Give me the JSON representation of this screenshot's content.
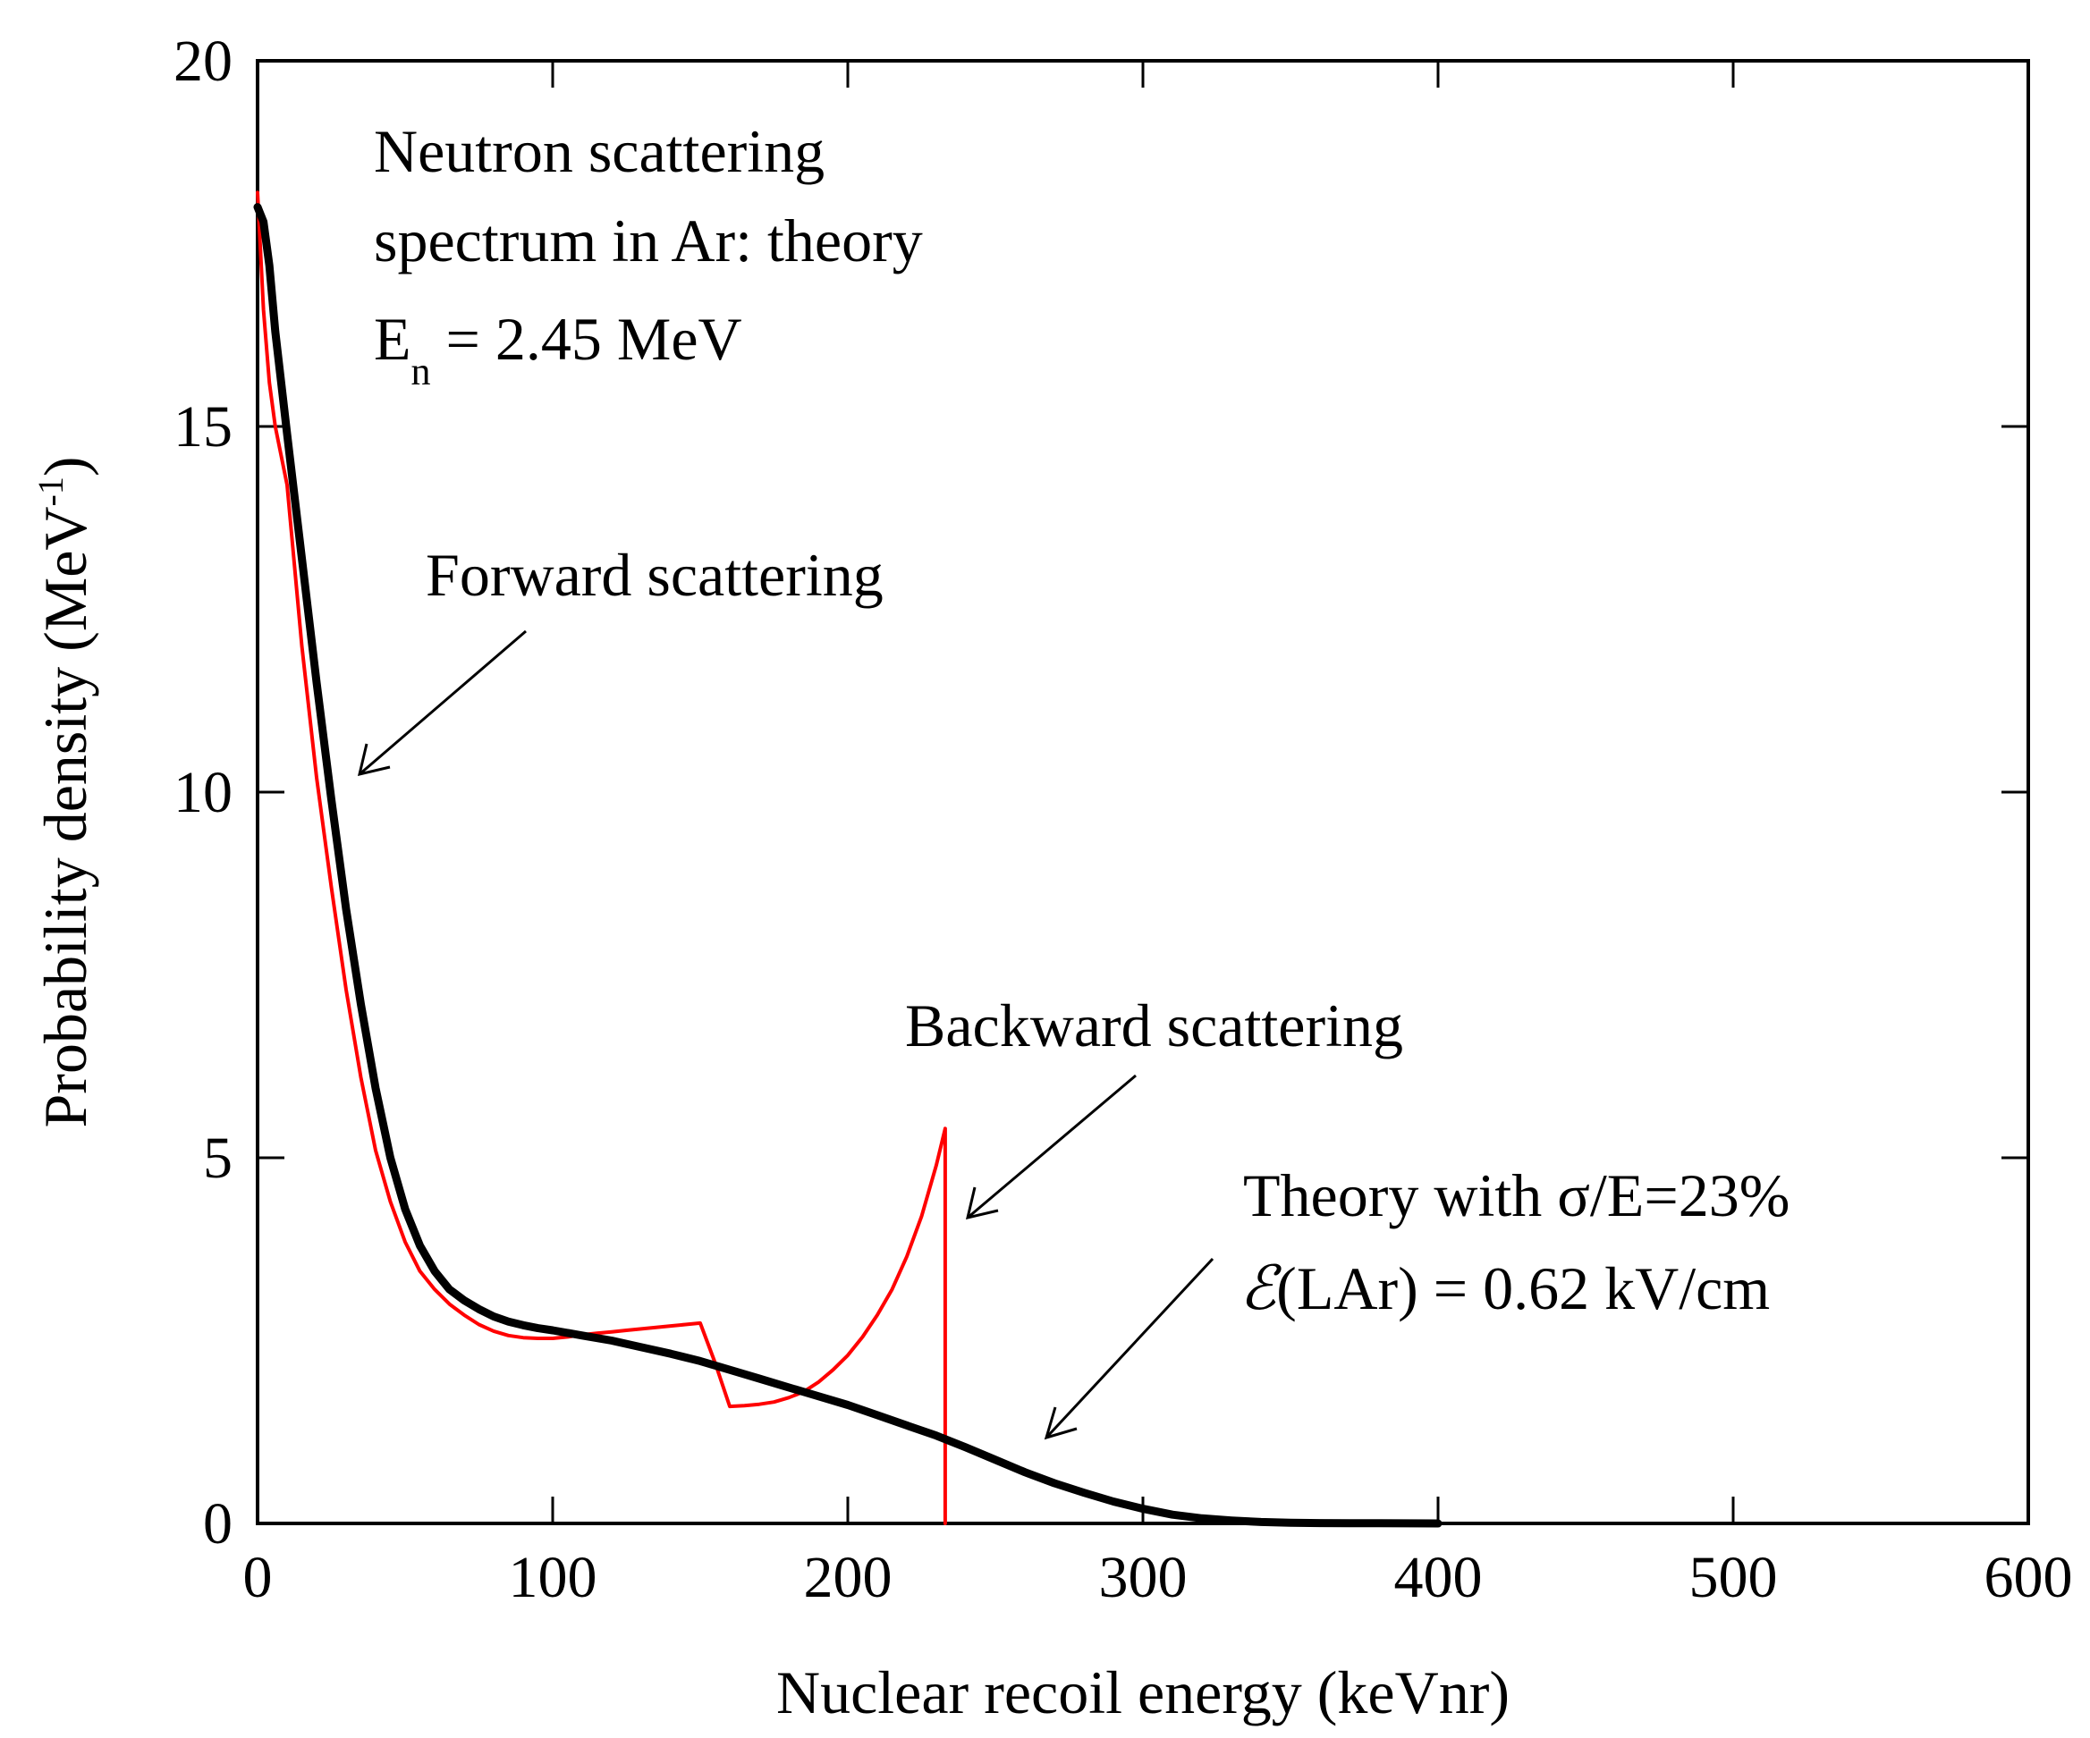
{
  "chart_data": {
    "type": "line",
    "xlabel": "Nuclear recoil energy (keVnr)",
    "ylabel": "Probability density (MeV",
    "ylabel_sup": "-1",
    "ylabel_close": ")",
    "xlim": [
      0,
      600
    ],
    "ylim": [
      0,
      20
    ],
    "x_ticks": [
      0,
      100,
      200,
      300,
      400,
      500,
      600
    ],
    "y_ticks": [
      0,
      5,
      10,
      15,
      20
    ],
    "x_tick_labels": [
      "0",
      "100",
      "200",
      "300",
      "400",
      "500",
      "600"
    ],
    "y_tick_labels": [
      "0",
      "5",
      "10",
      "15",
      "20"
    ],
    "grid": false,
    "series": [
      {
        "key": "theory",
        "color": "#ff0000",
        "x": [
          0,
          2,
          4,
          6,
          8,
          10,
          15,
          20,
          25,
          30,
          35,
          40,
          45,
          50,
          55,
          60,
          65,
          70,
          75,
          80,
          85,
          90,
          95,
          100,
          105,
          110,
          115,
          120,
          125,
          130,
          135,
          140,
          145,
          150,
          155,
          160,
          165,
          170,
          175,
          180,
          185,
          190,
          195,
          200,
          205,
          210,
          215,
          220,
          225,
          230,
          233,
          233
        ],
        "y": [
          18.2,
          16.6,
          15.6,
          15.0,
          14.6,
          14.2,
          12.0,
          10.2,
          8.7,
          7.3,
          6.1,
          5.1,
          4.4,
          3.85,
          3.45,
          3.2,
          3.0,
          2.85,
          2.72,
          2.63,
          2.57,
          2.54,
          2.53,
          2.53,
          2.55,
          2.58,
          2.6,
          2.62,
          2.64,
          2.66,
          2.68,
          2.7,
          2.72,
          2.74,
          2.2,
          1.6,
          1.61,
          1.63,
          1.66,
          1.72,
          1.8,
          1.93,
          2.1,
          2.3,
          2.55,
          2.85,
          3.2,
          3.65,
          4.2,
          4.9,
          5.4,
          0
        ]
      },
      {
        "key": "smeared",
        "color": "#000000",
        "x": [
          0,
          2,
          4,
          6,
          8,
          10,
          15,
          20,
          25,
          30,
          35,
          40,
          45,
          50,
          55,
          60,
          65,
          70,
          75,
          80,
          85,
          90,
          95,
          100,
          110,
          120,
          130,
          140,
          150,
          160,
          170,
          180,
          190,
          200,
          210,
          220,
          230,
          240,
          250,
          260,
          270,
          280,
          290,
          300,
          310,
          320,
          330,
          340,
          350,
          360,
          370,
          380,
          390,
          400
        ],
        "y": [
          18.0,
          17.8,
          17.2,
          16.3,
          15.6,
          14.9,
          13.2,
          11.5,
          9.9,
          8.4,
          7.1,
          5.95,
          5.0,
          4.3,
          3.8,
          3.45,
          3.2,
          3.05,
          2.93,
          2.83,
          2.76,
          2.71,
          2.67,
          2.64,
          2.57,
          2.5,
          2.41,
          2.32,
          2.22,
          2.1,
          1.98,
          1.86,
          1.74,
          1.62,
          1.48,
          1.34,
          1.2,
          1.04,
          0.87,
          0.7,
          0.55,
          0.42,
          0.3,
          0.2,
          0.12,
          0.07,
          0.04,
          0.02,
          0.01,
          0.005,
          0.003,
          0.002,
          0.001,
          0
        ]
      }
    ],
    "annotations": {
      "title_line1": "Neutron scattering",
      "title_line2": "spectrum in Ar: theory",
      "energy_main": "E",
      "energy_sub": "n",
      "energy_rest": " = 2.45 MeV",
      "forward": "Forward scattering",
      "backward": "Backward scattering",
      "theory_line1": "Theory with σ/E=23%",
      "theory_line2_symbol": "ℰ",
      "theory_line2_rest": "(LAr) = 0.62 kV/cm"
    }
  }
}
